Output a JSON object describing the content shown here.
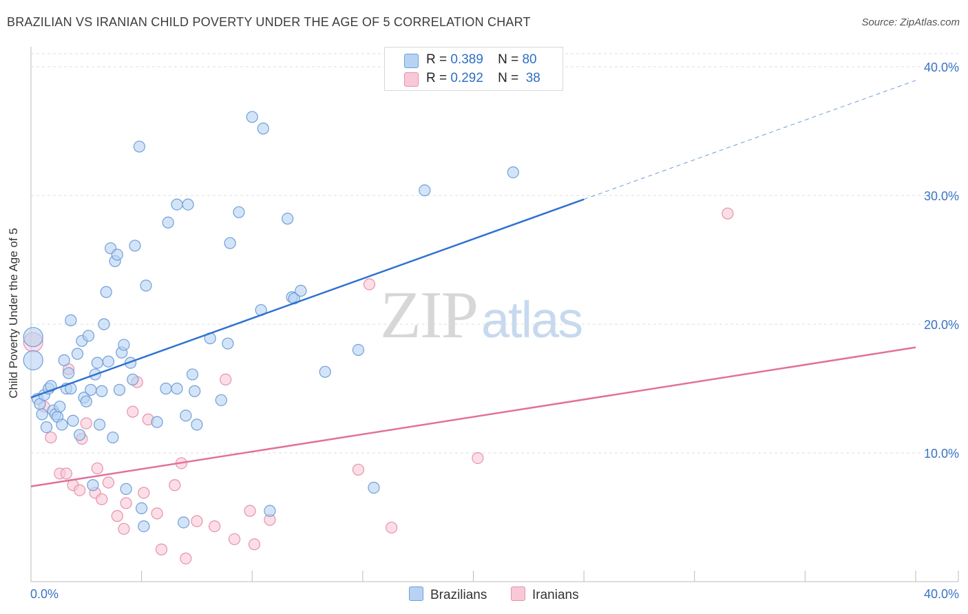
{
  "header": {
    "title": "BRAZILIAN VS IRANIAN CHILD POVERTY UNDER THE AGE OF 5 CORRELATION CHART",
    "source": "Source: ZipAtlas.com"
  },
  "watermark": {
    "zip": "ZIP",
    "atlas": "atlas"
  },
  "legend_top": [
    {
      "swatch_color": "#b8d2f3",
      "r_label": "R =",
      "r_value": "0.389",
      "n_label": "N =",
      "n_value": "80"
    },
    {
      "swatch_color": "#f9c8d6",
      "r_label": "R =",
      "r_value": "0.292",
      "n_label": "N =",
      "n_value": "38"
    }
  ],
  "legend_bottom": [
    {
      "label": "Brazilians",
      "color": "#b8d2f3"
    },
    {
      "label": "Iranians",
      "color": "#f9c8d6"
    }
  ],
  "colors": {
    "brazilian_fill": "#b8d2f3",
    "brazilian_stroke": "#6e9fd8",
    "brazilian_line": "#2f72d0",
    "iranian_fill": "#f9c8d6",
    "iranian_stroke": "#e891ac",
    "iranian_line": "#e0719a",
    "grid": "#dcdcdc",
    "tick_label": "#3a72c4"
  },
  "chart_data": {
    "type": "scatter",
    "title": "BRAZILIAN VS IRANIAN CHILD POVERTY UNDER THE AGE OF 5 CORRELATION CHART",
    "xlabel": "",
    "ylabel": "Child Poverty Under the Age of 5",
    "xlim": [
      0,
      40
    ],
    "ylim": [
      0,
      40
    ],
    "x_tick_labels": [
      "0.0%",
      "40.0%"
    ],
    "y_ticks": [
      10,
      20,
      30,
      40
    ],
    "y_tick_labels": [
      "10.0%",
      "20.0%",
      "30.0%",
      "40.0%"
    ],
    "grid": true,
    "legend_position": "top-center",
    "series": [
      {
        "name": "Brazilians",
        "R": 0.389,
        "N": 80,
        "trend": {
          "x0": 0,
          "y0": 14.3,
          "x1": 25,
          "y1": 29.7,
          "dashed_to_x": 40
        },
        "points": [
          [
            0.1,
            19.0,
            2
          ],
          [
            0.1,
            17.2,
            2
          ],
          [
            0.3,
            14.2,
            1
          ],
          [
            0.4,
            13.8,
            1
          ],
          [
            0.5,
            13.0,
            1
          ],
          [
            0.6,
            14.5,
            1
          ],
          [
            0.7,
            12.0,
            1
          ],
          [
            0.8,
            15.0,
            1
          ],
          [
            0.9,
            15.2,
            1
          ],
          [
            1.0,
            13.3,
            1
          ],
          [
            1.1,
            13.0,
            1
          ],
          [
            1.2,
            12.8,
            1
          ],
          [
            1.3,
            13.6,
            1
          ],
          [
            1.4,
            12.2,
            1
          ],
          [
            1.5,
            17.2,
            1
          ],
          [
            1.6,
            15.0,
            1
          ],
          [
            1.7,
            16.2,
            1
          ],
          [
            1.8,
            15.0,
            1
          ],
          [
            1.8,
            20.3,
            1
          ],
          [
            1.9,
            12.5,
            1
          ],
          [
            2.1,
            17.7,
            1
          ],
          [
            2.2,
            11.4,
            1
          ],
          [
            2.3,
            18.7,
            1
          ],
          [
            2.4,
            14.3,
            1
          ],
          [
            2.5,
            14.0,
            1
          ],
          [
            2.6,
            19.1,
            1
          ],
          [
            2.7,
            14.9,
            1
          ],
          [
            2.8,
            7.5,
            1
          ],
          [
            2.9,
            16.1,
            1
          ],
          [
            3.0,
            17.0,
            1
          ],
          [
            3.1,
            12.2,
            1
          ],
          [
            3.2,
            14.8,
            1
          ],
          [
            3.3,
            20.0,
            1
          ],
          [
            3.4,
            22.5,
            1
          ],
          [
            3.5,
            17.1,
            1
          ],
          [
            3.6,
            25.9,
            1
          ],
          [
            3.7,
            11.2,
            1
          ],
          [
            3.8,
            24.9,
            1
          ],
          [
            3.9,
            25.4,
            1
          ],
          [
            4.0,
            14.9,
            1
          ],
          [
            4.1,
            17.8,
            1
          ],
          [
            4.2,
            18.4,
            1
          ],
          [
            4.3,
            7.2,
            1
          ],
          [
            4.5,
            17.0,
            1
          ],
          [
            4.6,
            15.7,
            1
          ],
          [
            4.7,
            26.1,
            1
          ],
          [
            4.9,
            33.8,
            1
          ],
          [
            5.0,
            5.7,
            1
          ],
          [
            5.1,
            4.3,
            1
          ],
          [
            5.2,
            23.0,
            1
          ],
          [
            5.7,
            12.4,
            1
          ],
          [
            6.1,
            15.0,
            1
          ],
          [
            6.2,
            27.9,
            1
          ],
          [
            6.6,
            15.0,
            1
          ],
          [
            6.6,
            29.3,
            1
          ],
          [
            6.9,
            4.6,
            1
          ],
          [
            7.0,
            12.9,
            1
          ],
          [
            7.1,
            29.3,
            1
          ],
          [
            7.3,
            16.1,
            1
          ],
          [
            7.4,
            14.8,
            1
          ],
          [
            7.5,
            12.2,
            1
          ],
          [
            8.1,
            18.9,
            1
          ],
          [
            8.6,
            14.1,
            1
          ],
          [
            8.9,
            18.5,
            1
          ],
          [
            9.0,
            26.3,
            1
          ],
          [
            9.4,
            28.7,
            1
          ],
          [
            10.0,
            36.1,
            1
          ],
          [
            10.4,
            21.1,
            1
          ],
          [
            10.5,
            35.2,
            1
          ],
          [
            10.8,
            5.5,
            1
          ],
          [
            11.6,
            28.2,
            1
          ],
          [
            11.8,
            22.1,
            1
          ],
          [
            11.9,
            22.0,
            1
          ],
          [
            12.2,
            22.6,
            1
          ],
          [
            13.3,
            16.3,
            1
          ],
          [
            14.8,
            18.0,
            1
          ],
          [
            15.5,
            7.3,
            1
          ],
          [
            17.8,
            30.4,
            1
          ],
          [
            21.8,
            31.8,
            1
          ]
        ]
      },
      {
        "name": "Iranians",
        "R": 0.292,
        "N": 38,
        "trend": {
          "x0": 0,
          "y0": 7.4,
          "x1": 40,
          "y1": 18.2
        },
        "points": [
          [
            0.1,
            18.6,
            2
          ],
          [
            0.6,
            13.6,
            1
          ],
          [
            0.9,
            11.2,
            1
          ],
          [
            1.3,
            8.4,
            1
          ],
          [
            1.6,
            8.4,
            1
          ],
          [
            1.7,
            16.5,
            1
          ],
          [
            1.9,
            7.5,
            1
          ],
          [
            2.2,
            7.1,
            1
          ],
          [
            2.3,
            11.1,
            1
          ],
          [
            2.5,
            12.3,
            1
          ],
          [
            2.9,
            6.9,
            1
          ],
          [
            3.0,
            8.8,
            1
          ],
          [
            3.2,
            6.4,
            1
          ],
          [
            3.5,
            7.7,
            1
          ],
          [
            3.9,
            5.1,
            1
          ],
          [
            4.2,
            4.1,
            1
          ],
          [
            4.3,
            6.1,
            1
          ],
          [
            4.6,
            13.2,
            1
          ],
          [
            4.8,
            15.5,
            1
          ],
          [
            5.1,
            6.9,
            1
          ],
          [
            5.3,
            12.6,
            1
          ],
          [
            5.7,
            5.3,
            1
          ],
          [
            5.9,
            2.5,
            1
          ],
          [
            6.5,
            7.5,
            1
          ],
          [
            6.8,
            9.2,
            1
          ],
          [
            7.0,
            1.8,
            1
          ],
          [
            7.5,
            4.7,
            1
          ],
          [
            8.3,
            4.3,
            1
          ],
          [
            8.8,
            15.7,
            1
          ],
          [
            9.2,
            3.3,
            1
          ],
          [
            9.9,
            5.5,
            1
          ],
          [
            10.1,
            2.9,
            1
          ],
          [
            10.8,
            4.8,
            1
          ],
          [
            14.8,
            8.7,
            1
          ],
          [
            15.3,
            23.1,
            1
          ],
          [
            16.3,
            4.2,
            1
          ],
          [
            20.2,
            9.6,
            1
          ],
          [
            31.5,
            28.6,
            1
          ]
        ]
      }
    ]
  }
}
